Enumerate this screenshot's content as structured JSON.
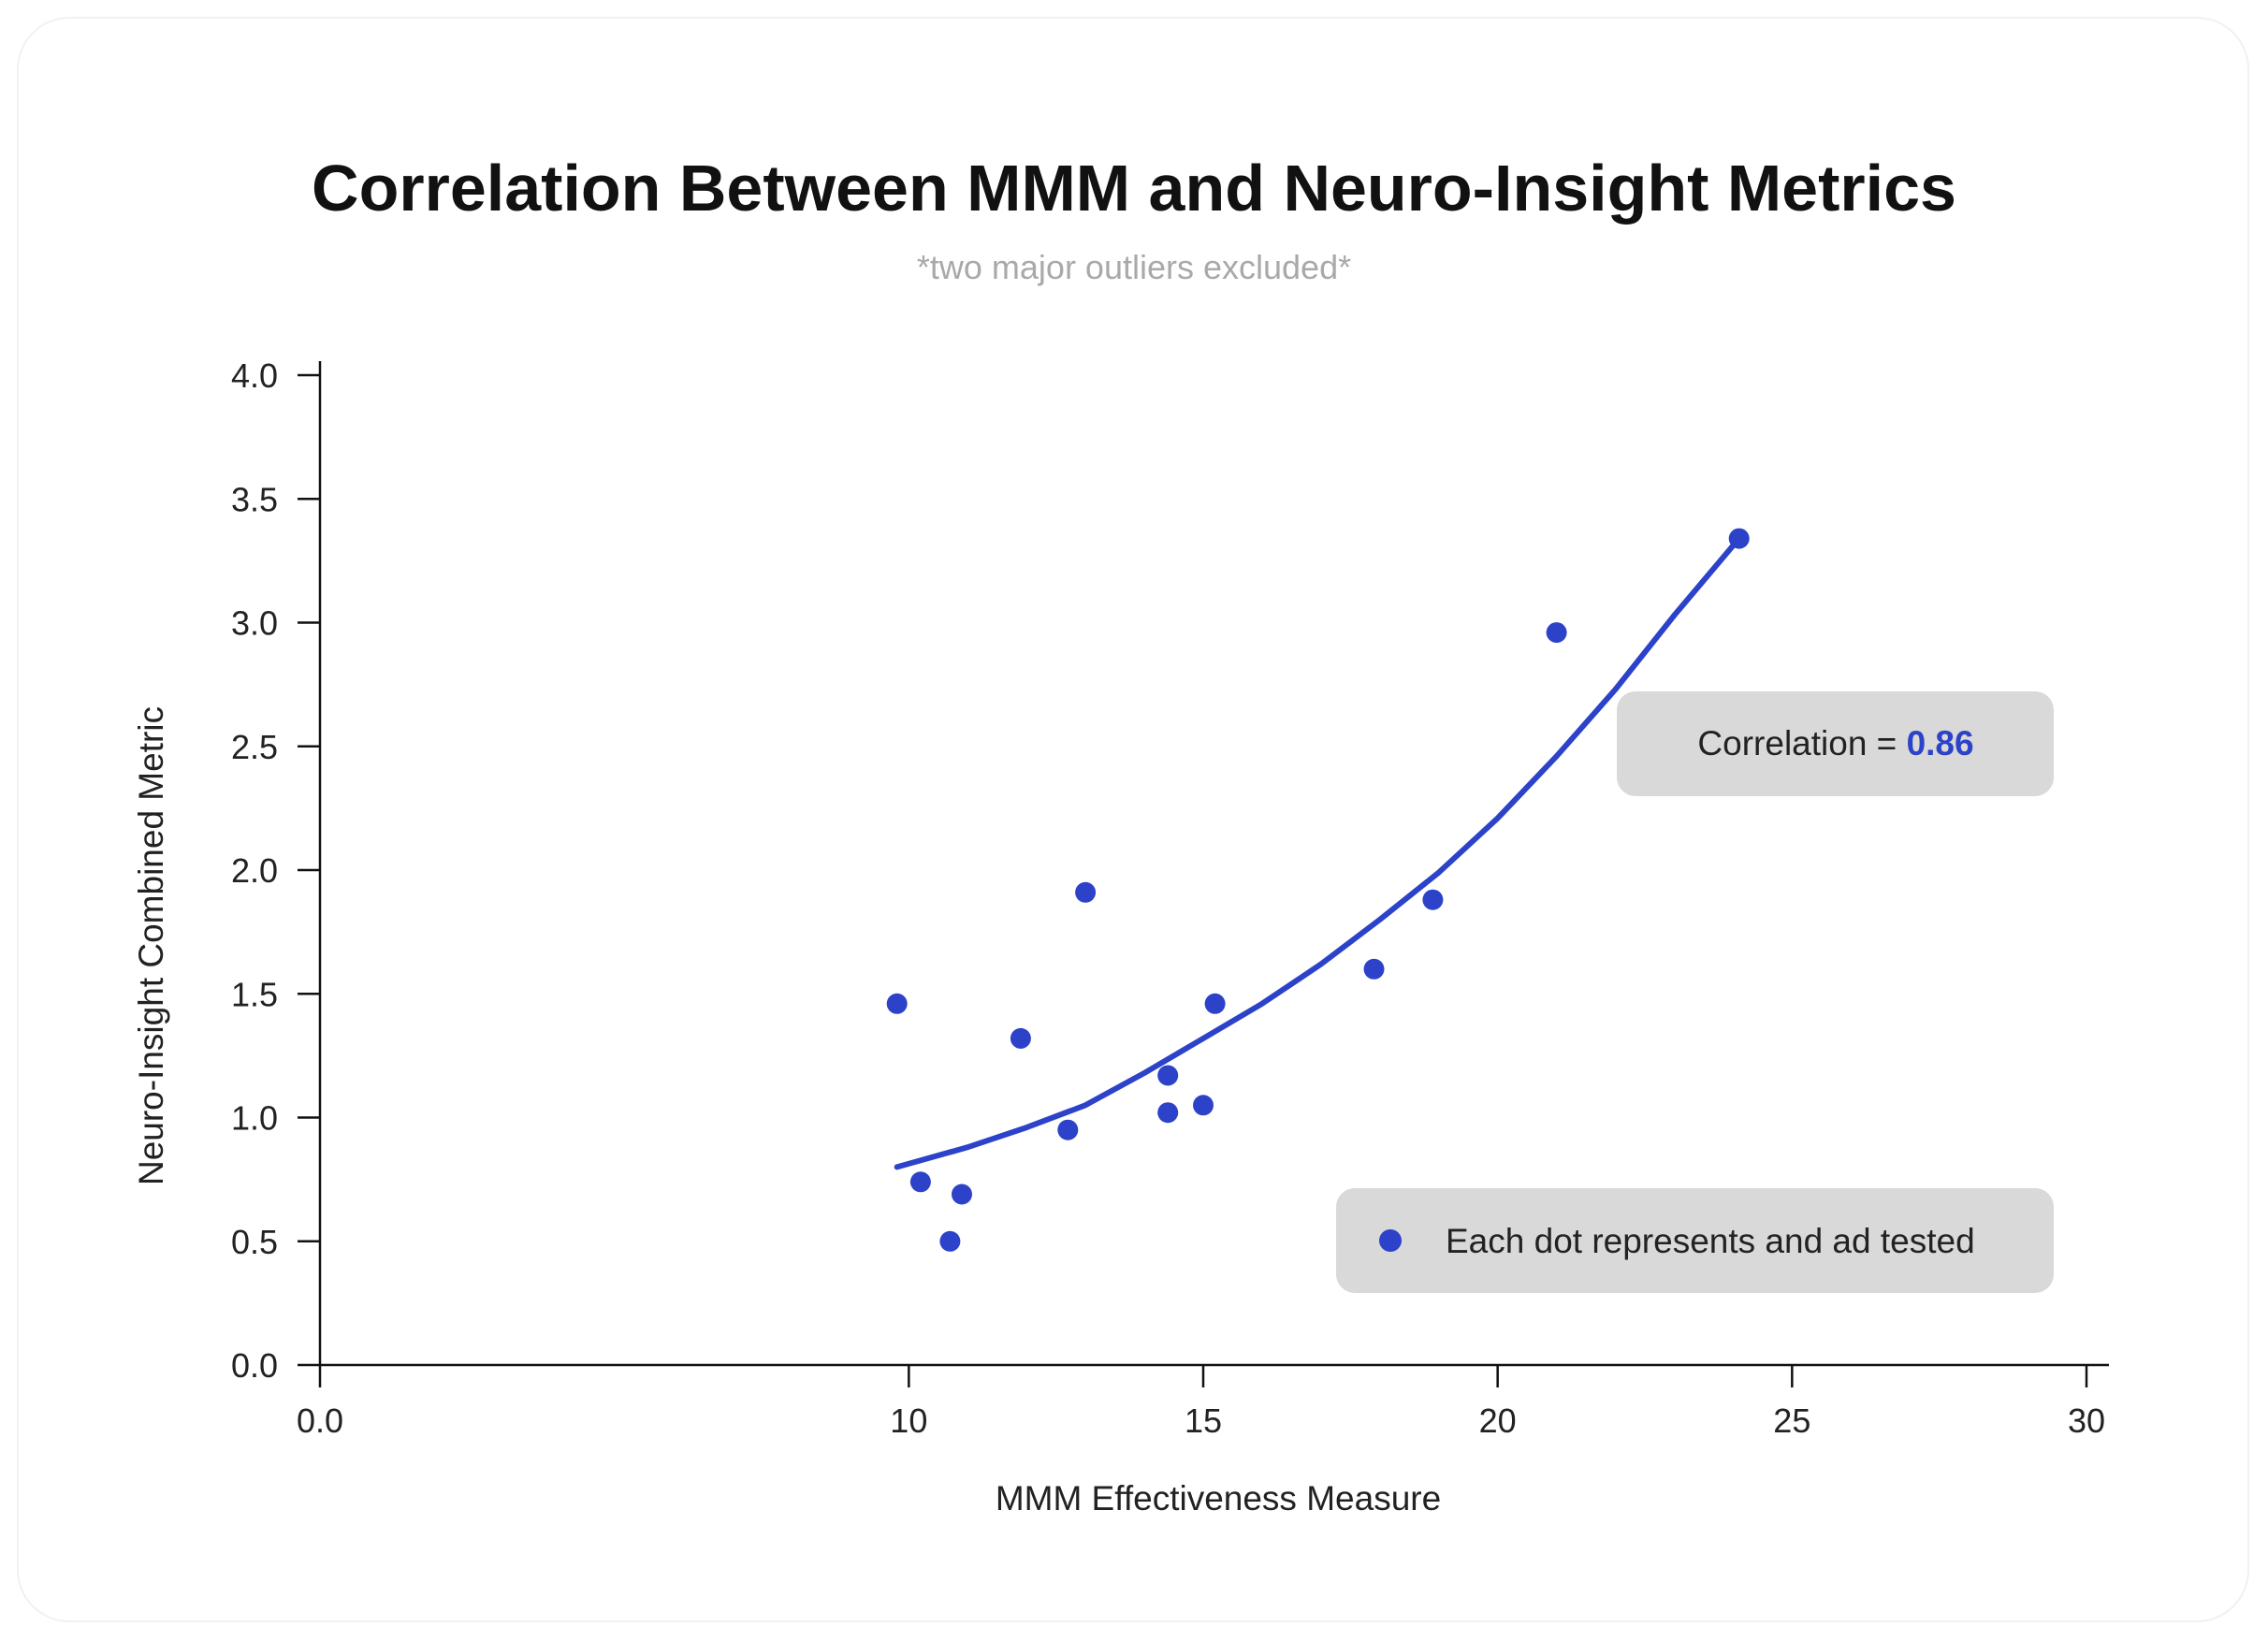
{
  "chart_data": {
    "type": "scatter",
    "title": "Correlation Between MMM and Neuro-Insight Metrics",
    "subtitle": "*two major outliers excluded*",
    "xlabel": "MMM Effectiveness Measure",
    "ylabel": "Neuro-Insight Combined Metric",
    "xlim": [
      0,
      30
    ],
    "ylim": [
      0,
      4
    ],
    "x_ticks": [
      "0.0",
      "10",
      "15",
      "20",
      "25",
      "30"
    ],
    "x_tick_values": [
      0,
      10,
      15,
      20,
      25,
      30
    ],
    "y_ticks": [
      "0.0",
      "0.5",
      "1.0",
      "1.5",
      "2.0",
      "2.5",
      "3.0",
      "3.5",
      "4.0"
    ],
    "y_tick_values": [
      0,
      0.5,
      1.0,
      1.5,
      2.0,
      2.5,
      3.0,
      3.5,
      4.0
    ],
    "grid": false,
    "series": [
      {
        "points": [
          {
            "x": 9.8,
            "y": 1.46
          },
          {
            "x": 10.2,
            "y": 0.74
          },
          {
            "x": 10.9,
            "y": 0.69
          },
          {
            "x": 10.7,
            "y": 0.5
          },
          {
            "x": 11.9,
            "y": 1.32
          },
          {
            "x": 12.7,
            "y": 0.95
          },
          {
            "x": 13.0,
            "y": 1.91
          },
          {
            "x": 14.4,
            "y": 1.17
          },
          {
            "x": 14.4,
            "y": 1.02
          },
          {
            "x": 15.0,
            "y": 1.05
          },
          {
            "x": 15.2,
            "y": 1.46
          },
          {
            "x": 17.9,
            "y": 1.6
          },
          {
            "x": 18.9,
            "y": 1.88
          },
          {
            "x": 21.0,
            "y": 2.96
          },
          {
            "x": 24.1,
            "y": 3.34
          }
        ]
      }
    ],
    "trendline": {
      "type": "exponential",
      "x": [
        9.8,
        11.0,
        12.0,
        13.0,
        14.0,
        15.0,
        16.0,
        17.0,
        18.0,
        19.0,
        20.0,
        21.0,
        22.0,
        23.0,
        24.1
      ],
      "y": [
        0.8,
        0.88,
        0.96,
        1.05,
        1.18,
        1.32,
        1.46,
        1.62,
        1.8,
        1.99,
        2.21,
        2.46,
        2.73,
        3.03,
        3.34
      ]
    },
    "colors": {
      "series": "#2c42c9",
      "trendline": "#2c42c9",
      "box_background": "#d9d9d9",
      "axis": "#111111"
    },
    "annotations": {
      "correlation": {
        "label": "Correlation = ",
        "value": "0.86"
      },
      "legend": {
        "label": "Each dot represents and ad tested",
        "placement": "bottom-right"
      }
    }
  }
}
